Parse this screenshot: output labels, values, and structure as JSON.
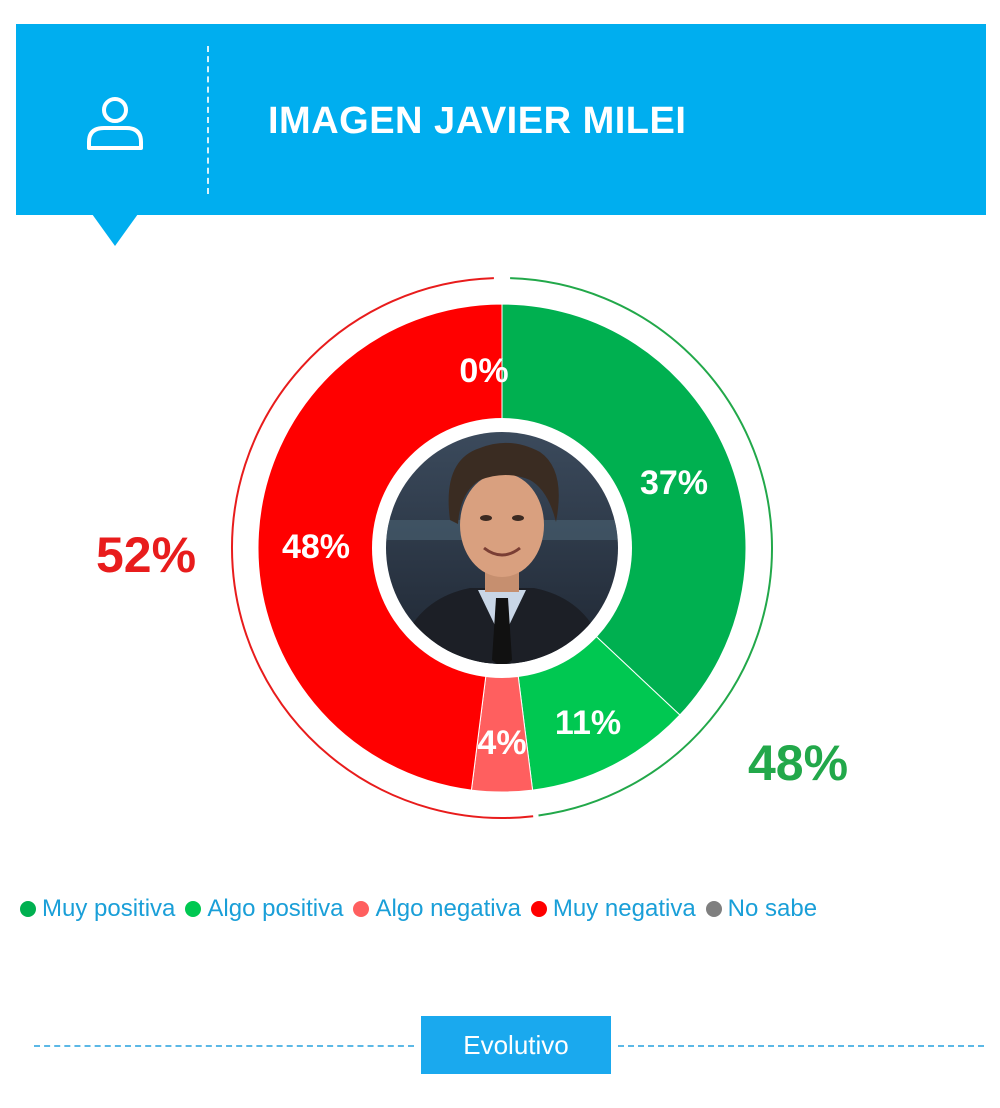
{
  "header": {
    "title": "IMAGEN JAVIER MILEI",
    "icon": "person-icon",
    "bg_color": "#00aeef"
  },
  "chart_data": {
    "type": "pie",
    "variant": "donut",
    "slices": [
      {
        "label": "Muy positiva",
        "value": 37,
        "display": "37%",
        "color": "#00b050"
      },
      {
        "label": "Algo positiva",
        "value": 11,
        "display": "11%",
        "color": "#00c851"
      },
      {
        "label": "Algo negativa",
        "value": 4,
        "display": "4%",
        "color": "#ff5f5f"
      },
      {
        "label": "Muy negativa",
        "value": 48,
        "display": "48%",
        "color": "#ff0000"
      },
      {
        "label": "No sabe",
        "value": 0,
        "display": "0%",
        "color": "#7f7f7f"
      }
    ],
    "totals": {
      "positive": {
        "value": 48,
        "display": "48%",
        "color": "#22a84a"
      },
      "negative": {
        "value": 52,
        "display": "52%",
        "color": "#e81c1c"
      }
    },
    "center_image": "portrait-photo",
    "legend_position": "bottom"
  },
  "legend": {
    "items": [
      {
        "label": "Muy positiva",
        "color": "#00b050"
      },
      {
        "label": "Algo positiva",
        "color": "#00c851"
      },
      {
        "label": "Algo negativa",
        "color": "#ff5f5f"
      },
      {
        "label": "Muy negativa",
        "color": "#ff0000"
      },
      {
        "label": "No sabe",
        "color": "#7f7f7f"
      }
    ]
  },
  "footer": {
    "button_label": "Evolutivo",
    "accent": "#1aa9ee"
  }
}
